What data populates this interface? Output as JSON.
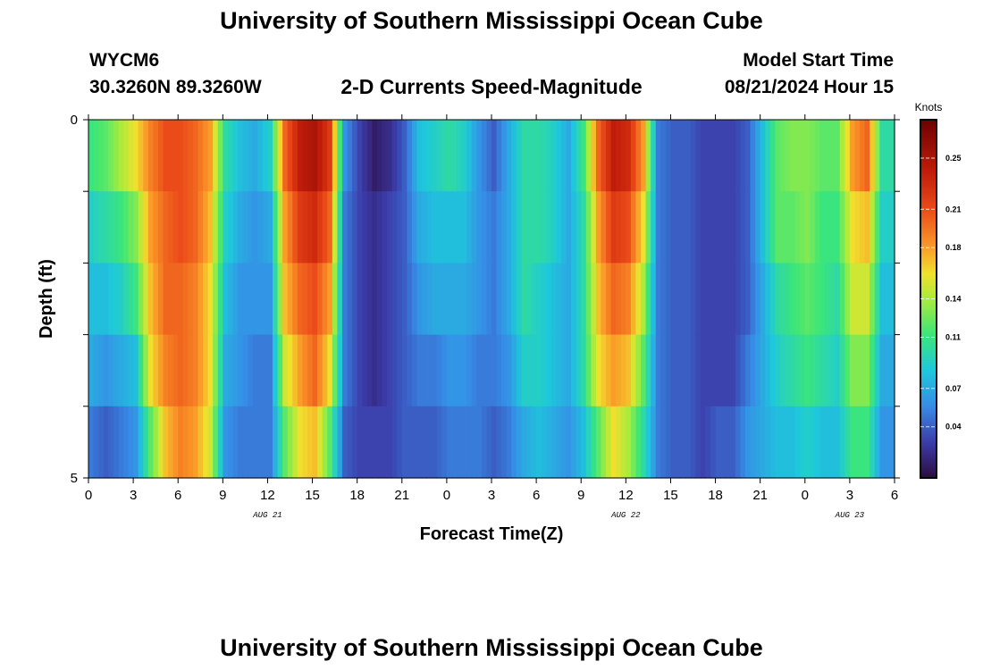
{
  "header": {
    "title": "University of Southern Mississippi Ocean Cube",
    "station": "WYCM6",
    "coords": "30.3260N  89.3260W",
    "chart_title": "2-D Currents Speed-Magnitude",
    "model_start_label": "Model Start Time",
    "model_start_value": "08/21/2024 Hour 15"
  },
  "footer": {
    "title": "University of Southern Mississippi Ocean Cube"
  },
  "chart_data": {
    "type": "heatmap",
    "xlabel": "Forecast Time(Z)",
    "ylabel": "Depth (ft)",
    "x_tick_labels": [
      "0",
      "3",
      "6",
      "9",
      "12",
      "15",
      "18",
      "21",
      "0",
      "3",
      "6",
      "9",
      "12",
      "15",
      "18",
      "21",
      "0",
      "3",
      "6"
    ],
    "date_labels": [
      {
        "text": "AUG 21",
        "hour": 12
      },
      {
        "text": "AUG 22",
        "hour": 36
      },
      {
        "text": "AUG 23",
        "hour": 51
      }
    ],
    "y_tick_labels": [
      "0",
      "5"
    ],
    "ylim": [
      0,
      5
    ],
    "xlim_hours": [
      0,
      54
    ],
    "colorbar": {
      "unit": "Knots",
      "vmin": 0.0,
      "vmax": 0.28,
      "tick_labels": [
        "0.25",
        "0.21",
        "0.18",
        "0.14",
        "0.11",
        "0.07",
        "0.04"
      ],
      "tick_values": [
        0.25,
        0.21,
        0.18,
        0.14,
        0.11,
        0.07,
        0.04
      ]
    },
    "depth_layers": 5,
    "grid": false,
    "columns": [
      {
        "hour": 0,
        "values": [
          0.11,
          0.09,
          0.08,
          0.07,
          0.05
        ]
      },
      {
        "hour": 1,
        "values": [
          0.12,
          0.1,
          0.08,
          0.06,
          0.04
        ]
      },
      {
        "hour": 2,
        "values": [
          0.14,
          0.11,
          0.09,
          0.07,
          0.05
        ]
      },
      {
        "hour": 3,
        "values": [
          0.16,
          0.13,
          0.11,
          0.08,
          0.06
        ]
      },
      {
        "hour": 4,
        "values": [
          0.19,
          0.18,
          0.17,
          0.16,
          0.12
        ]
      },
      {
        "hour": 5,
        "values": [
          0.21,
          0.2,
          0.2,
          0.19,
          0.17
        ]
      },
      {
        "hour": 6,
        "values": [
          0.21,
          0.21,
          0.2,
          0.2,
          0.19
        ]
      },
      {
        "hour": 7,
        "values": [
          0.2,
          0.2,
          0.19,
          0.19,
          0.18
        ]
      },
      {
        "hour": 8,
        "values": [
          0.18,
          0.17,
          0.16,
          0.16,
          0.15
        ]
      },
      {
        "hour": 9,
        "values": [
          0.1,
          0.09,
          0.08,
          0.07,
          0.06
        ]
      },
      {
        "hour": 10,
        "values": [
          0.08,
          0.07,
          0.06,
          0.06,
          0.05
        ]
      },
      {
        "hour": 11,
        "values": [
          0.07,
          0.06,
          0.06,
          0.05,
          0.05
        ]
      },
      {
        "hour": 12,
        "values": [
          0.09,
          0.07,
          0.06,
          0.05,
          0.05
        ]
      },
      {
        "hour": 13,
        "values": [
          0.2,
          0.18,
          0.17,
          0.15,
          0.12
        ]
      },
      {
        "hour": 14,
        "values": [
          0.24,
          0.22,
          0.2,
          0.18,
          0.16
        ]
      },
      {
        "hour": 15,
        "values": [
          0.25,
          0.23,
          0.21,
          0.2,
          0.17
        ]
      },
      {
        "hour": 16,
        "values": [
          0.22,
          0.2,
          0.18,
          0.16,
          0.12
        ]
      },
      {
        "hour": 17,
        "values": [
          0.06,
          0.05,
          0.05,
          0.05,
          0.04
        ]
      },
      {
        "hour": 18,
        "values": [
          0.03,
          0.03,
          0.03,
          0.03,
          0.03
        ]
      },
      {
        "hour": 19,
        "values": [
          0.01,
          0.02,
          0.02,
          0.02,
          0.03
        ]
      },
      {
        "hour": 20,
        "values": [
          0.02,
          0.03,
          0.03,
          0.03,
          0.03
        ]
      },
      {
        "hour": 21,
        "values": [
          0.04,
          0.04,
          0.04,
          0.04,
          0.04
        ]
      },
      {
        "hour": 22,
        "values": [
          0.08,
          0.07,
          0.06,
          0.05,
          0.04
        ]
      },
      {
        "hour": 23,
        "values": [
          0.09,
          0.08,
          0.07,
          0.05,
          0.04
        ]
      },
      {
        "hour": 24,
        "values": [
          0.1,
          0.08,
          0.07,
          0.06,
          0.05
        ]
      },
      {
        "hour": 25,
        "values": [
          0.09,
          0.08,
          0.07,
          0.06,
          0.05
        ]
      },
      {
        "hour": 26,
        "values": [
          0.06,
          0.06,
          0.06,
          0.05,
          0.05
        ]
      },
      {
        "hour": 27,
        "values": [
          0.04,
          0.05,
          0.05,
          0.05,
          0.04
        ]
      },
      {
        "hour": 28,
        "values": [
          0.07,
          0.07,
          0.07,
          0.06,
          0.05
        ]
      },
      {
        "hour": 29,
        "values": [
          0.1,
          0.1,
          0.1,
          0.09,
          0.07
        ]
      },
      {
        "hour": 30,
        "values": [
          0.1,
          0.1,
          0.09,
          0.09,
          0.08
        ]
      },
      {
        "hour": 31,
        "values": [
          0.09,
          0.09,
          0.08,
          0.08,
          0.07
        ]
      },
      {
        "hour": 32,
        "values": [
          0.07,
          0.07,
          0.07,
          0.07,
          0.06
        ]
      },
      {
        "hour": 33,
        "values": [
          0.11,
          0.1,
          0.1,
          0.1,
          0.08
        ]
      },
      {
        "hour": 34,
        "values": [
          0.2,
          0.18,
          0.17,
          0.16,
          0.12
        ]
      },
      {
        "hour": 35,
        "values": [
          0.24,
          0.22,
          0.2,
          0.18,
          0.16
        ]
      },
      {
        "hour": 36,
        "values": [
          0.23,
          0.21,
          0.19,
          0.17,
          0.14
        ]
      },
      {
        "hour": 37,
        "values": [
          0.18,
          0.16,
          0.14,
          0.12,
          0.1
        ]
      },
      {
        "hour": 38,
        "values": [
          0.05,
          0.05,
          0.05,
          0.05,
          0.05
        ]
      },
      {
        "hour": 39,
        "values": [
          0.04,
          0.04,
          0.04,
          0.04,
          0.04
        ]
      },
      {
        "hour": 40,
        "values": [
          0.04,
          0.04,
          0.04,
          0.04,
          0.04
        ]
      },
      {
        "hour": 41,
        "values": [
          0.03,
          0.03,
          0.03,
          0.03,
          0.03
        ]
      },
      {
        "hour": 42,
        "values": [
          0.03,
          0.03,
          0.03,
          0.03,
          0.04
        ]
      },
      {
        "hour": 43,
        "values": [
          0.03,
          0.03,
          0.03,
          0.03,
          0.04
        ]
      },
      {
        "hour": 44,
        "values": [
          0.04,
          0.04,
          0.04,
          0.05,
          0.06
        ]
      },
      {
        "hour": 45,
        "values": [
          0.08,
          0.08,
          0.07,
          0.07,
          0.07
        ]
      },
      {
        "hour": 46,
        "values": [
          0.12,
          0.12,
          0.1,
          0.09,
          0.08
        ]
      },
      {
        "hour": 47,
        "values": [
          0.13,
          0.12,
          0.11,
          0.1,
          0.08
        ]
      },
      {
        "hour": 48,
        "values": [
          0.13,
          0.13,
          0.12,
          0.11,
          0.09
        ]
      },
      {
        "hour": 49,
        "values": [
          0.12,
          0.11,
          0.11,
          0.1,
          0.08
        ]
      },
      {
        "hour": 50,
        "values": [
          0.12,
          0.11,
          0.1,
          0.09,
          0.08
        ]
      },
      {
        "hour": 51,
        "values": [
          0.18,
          0.16,
          0.15,
          0.13,
          0.11
        ]
      },
      {
        "hour": 52,
        "values": [
          0.2,
          0.17,
          0.15,
          0.13,
          0.11
        ]
      },
      {
        "hour": 53,
        "values": [
          0.1,
          0.09,
          0.08,
          0.07,
          0.06
        ]
      }
    ]
  }
}
